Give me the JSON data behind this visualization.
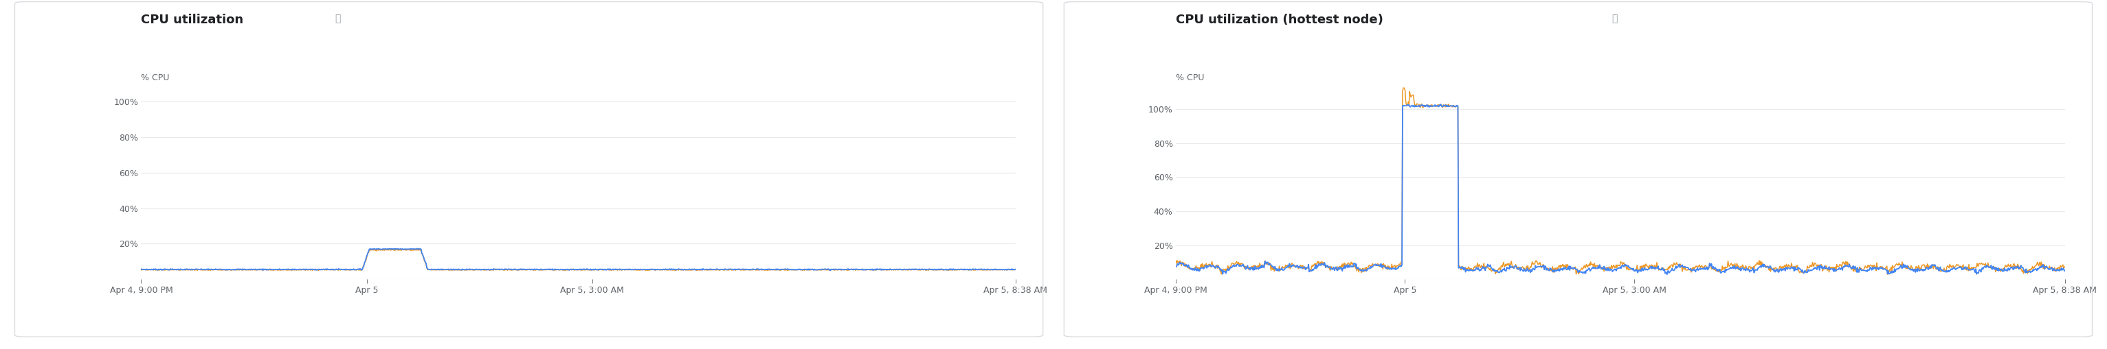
{
  "fig_width": 30.66,
  "fig_height": 5.09,
  "bg_color": "#ffffff",
  "panel_border_color": "#dadce0",
  "grid_color": "#e8eaed",
  "title_color": "#202124",
  "ylabel_color": "#5f6368",
  "tick_color": "#5f6368",
  "question_color": "#9aa0a6",
  "title_fontsize": 13,
  "tick_fontsize": 9,
  "ylabel_fontsize": 9,
  "chart1": {
    "title": "CPU utilization",
    "ylabel": "% CPU",
    "yticks": [
      20,
      40,
      60,
      80,
      100
    ],
    "ytick_labels": [
      "20%",
      "40%",
      "60%",
      "80%",
      "100%"
    ],
    "ylim": [
      0,
      110
    ],
    "line_color_blue": "#4285f4",
    "line_color_orange": "#ea8600",
    "line_width": 1.5
  },
  "chart2": {
    "title": "CPU utilization (hottest node)",
    "ylabel": "% CPU",
    "yticks": [
      20,
      40,
      60,
      80,
      100
    ],
    "ytick_labels": [
      "20%",
      "40%",
      "60%",
      "80%",
      "100%"
    ],
    "ylim": [
      0,
      115
    ],
    "line_color_blue": "#4285f4",
    "line_color_orange": "#ea8600",
    "line_width": 1.5
  },
  "xtick_labels": [
    "Apr 4, 9:00 PM",
    "Apr 5",
    "Apr 5, 3:00 AM",
    "Apr 5, 8:38 AM"
  ],
  "total_minutes": 698,
  "t_midnight_min": 180,
  "t_3am_min": 360
}
